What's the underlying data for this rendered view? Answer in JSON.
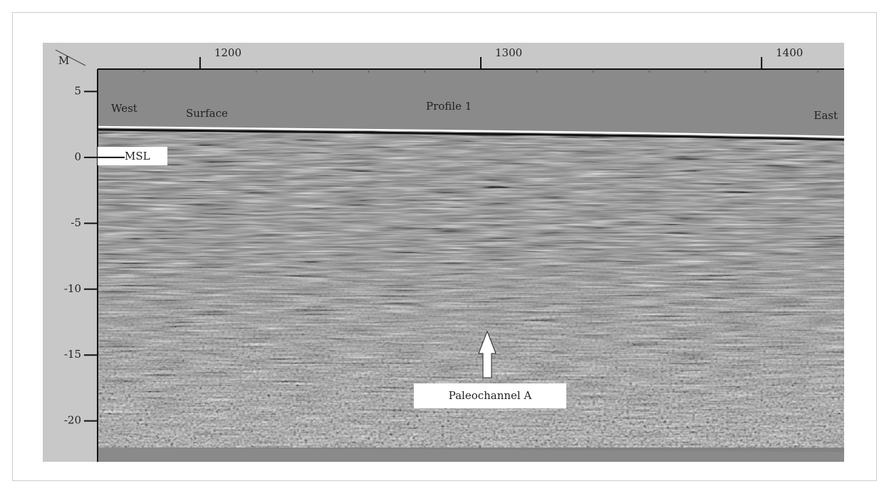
{
  "chart_data": {
    "type": "radargram",
    "title": "Profile 1",
    "y_axis_label": "M",
    "xlim": [
      1163.5,
      1429.4
    ],
    "xticks": [
      1200,
      1300,
      1400
    ],
    "xminor_ticks": [
      1180,
      1220,
      1240,
      1260,
      1280,
      1320,
      1340,
      1360,
      1380,
      1420
    ],
    "ylim": [
      -23.1,
      6.7
    ],
    "yticks": [
      5,
      0,
      -5,
      -10,
      -15,
      -20
    ],
    "annotations": {
      "west": "West",
      "surface": "Surface",
      "east": "East",
      "msl": "MSL",
      "feature": "Paleochannel A"
    }
  }
}
